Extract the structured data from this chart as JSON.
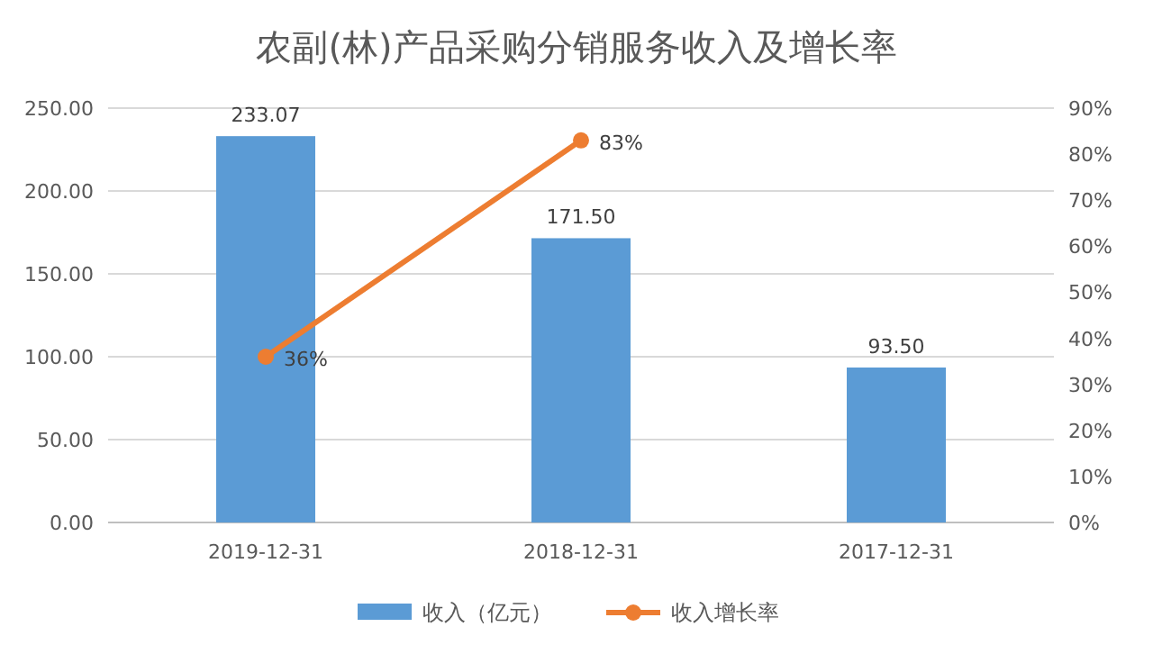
{
  "chart_data": {
    "type": "bar",
    "title": "农副(林)产品采购分销服务收入及增长率",
    "categories": [
      "2019-12-31",
      "2018-12-31",
      "2017-12-31"
    ],
    "series": [
      {
        "name": "收入（亿元）",
        "color": "#5b9bd5",
        "values": [
          233.07,
          171.5,
          93.5
        ],
        "value_labels": [
          "233.07",
          "171.50",
          "93.50"
        ]
      },
      {
        "name": "收入增长率",
        "type": "line",
        "axis": "y2",
        "color": "#ed7d31",
        "values": [
          36,
          83,
          null
        ],
        "value_labels": [
          "36%",
          "83%",
          null
        ]
      }
    ],
    "ylim": [
      0,
      250
    ],
    "yticks": [
      {
        "value": 0,
        "label": "0.00"
      },
      {
        "value": 50,
        "label": "50.00"
      },
      {
        "value": 100,
        "label": "100.00"
      },
      {
        "value": 150,
        "label": "150.00"
      },
      {
        "value": 200,
        "label": "200.00"
      },
      {
        "value": 250,
        "label": "250.00"
      }
    ],
    "y2lim": [
      0,
      90
    ],
    "y2ticks": [
      {
        "value": 0,
        "label": "0%"
      },
      {
        "value": 10,
        "label": "10%"
      },
      {
        "value": 20,
        "label": "20%"
      },
      {
        "value": 30,
        "label": "30%"
      },
      {
        "value": 40,
        "label": "40%"
      },
      {
        "value": 50,
        "label": "50%"
      },
      {
        "value": 60,
        "label": "60%"
      },
      {
        "value": 70,
        "label": "70%"
      },
      {
        "value": 80,
        "label": "80%"
      },
      {
        "value": 90,
        "label": "90%"
      }
    ],
    "grid": "y",
    "legend": "bottom",
    "marker": "circle",
    "line_style": "solid"
  }
}
